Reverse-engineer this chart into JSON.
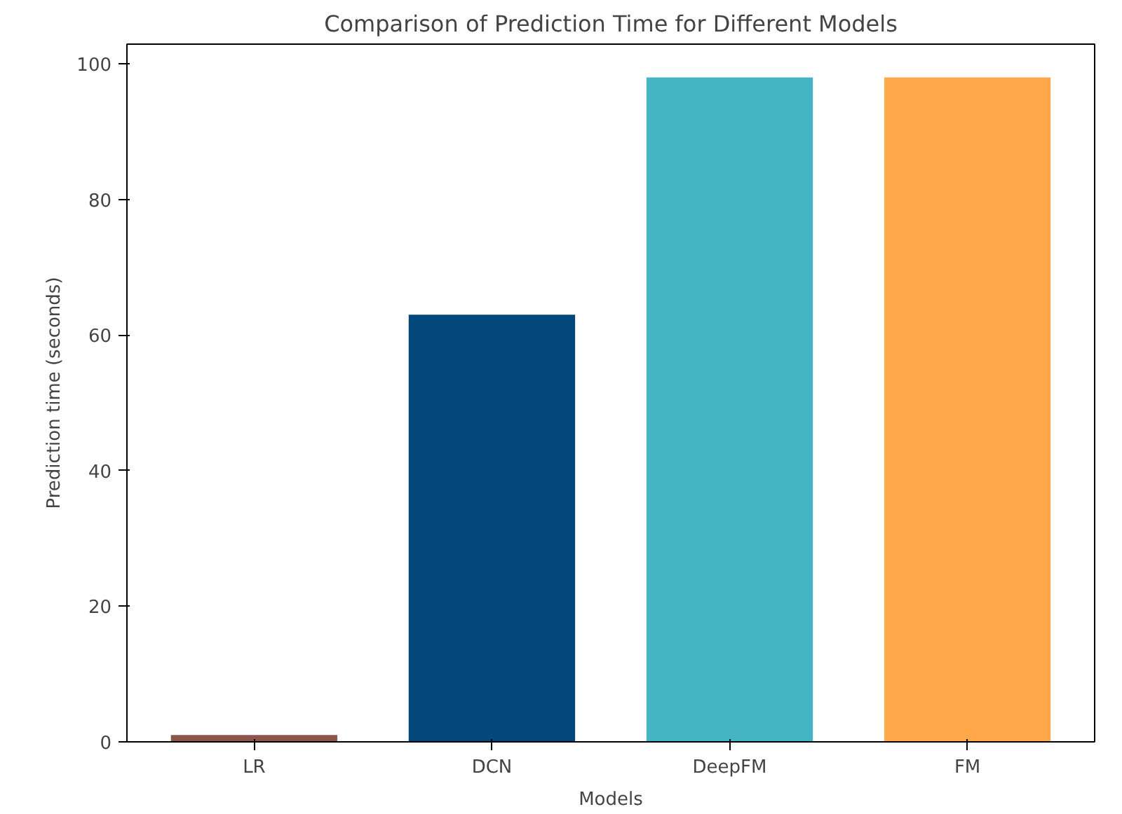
{
  "chart_data": {
    "type": "bar",
    "title": "Comparison of Prediction Time for Different Models",
    "xlabel": "Models",
    "ylabel": "Prediction time (seconds)",
    "categories": [
      "LR",
      "DCN",
      "DeepFM",
      "FM"
    ],
    "values": [
      1,
      63,
      98,
      98
    ],
    "colors": [
      "#8c564b",
      "#03487a",
      "#45b5c4",
      "#ffa94a"
    ],
    "ylim": [
      0,
      102.9
    ],
    "yticks": [
      0,
      20,
      40,
      60,
      80,
      100
    ],
    "grid": false
  }
}
